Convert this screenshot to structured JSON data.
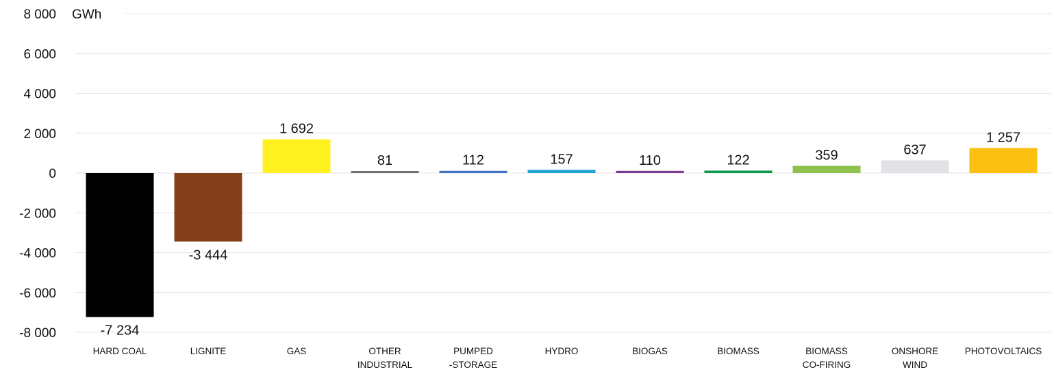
{
  "chart_data": {
    "type": "bar",
    "unit_label": "GWh",
    "ylim": [
      -8000,
      8000
    ],
    "yticks": [
      8000,
      6000,
      4000,
      2000,
      0,
      -2000,
      -4000,
      -6000,
      -8000
    ],
    "ytick_labels": [
      "8 000",
      "6 000",
      "4 000",
      "2 000",
      "0",
      "-2 000",
      "-4 000",
      "-6 000",
      "-8 000"
    ],
    "grid": true,
    "categories": [
      [
        "HARD COAL"
      ],
      [
        "LIGNITE"
      ],
      [
        "GAS"
      ],
      [
        "OTHER",
        "INDUSTRIAL"
      ],
      [
        "PUMPED",
        "-STORAGE"
      ],
      [
        "HYDRO"
      ],
      [
        "BIOGAS"
      ],
      [
        "BIOMASS"
      ],
      [
        "BIOMASS",
        "CO-FIRING"
      ],
      [
        "ONSHORE",
        "WIND"
      ],
      [
        "PHOTOVOLTAICS"
      ]
    ],
    "values": [
      -7234,
      -3444,
      1692,
      81,
      112,
      157,
      110,
      122,
      359,
      637,
      1257
    ],
    "value_labels": [
      "-7 234",
      "-3 444",
      "1 692",
      "81",
      "112",
      "157",
      "110",
      "122",
      "359",
      "637",
      "1 257"
    ],
    "colors": [
      "#000000",
      "#843f1b",
      "#fff01f",
      "#6f6f6f",
      "#4472c4",
      "#1ea5d4",
      "#7a3a8f",
      "#0e9a4d",
      "#8fc14e",
      "#e2e2e6",
      "#fcc110"
    ]
  }
}
